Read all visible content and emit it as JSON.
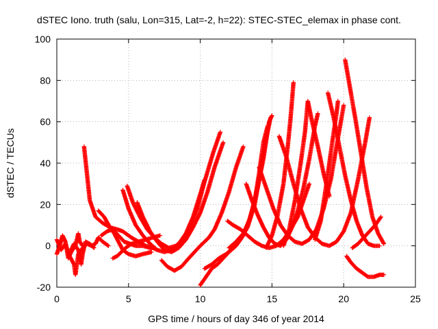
{
  "chart_data": {
    "type": "scatter",
    "title": "dSTEC Iono. truth (salu, Lon=315, Lat=-2, h=22): STEC-STEC_elemax in phase cont.",
    "xlabel": "GPS time / hours of day 346 of year 2014",
    "ylabel": "dSTEC  / TECUs",
    "xlim": [
      0,
      25
    ],
    "ylim": [
      -20,
      100
    ],
    "xticks": [
      0,
      5,
      10,
      15,
      20,
      25
    ],
    "yticks": [
      -20,
      0,
      20,
      40,
      60,
      80,
      100
    ],
    "xtick_labels": [
      "0",
      "5",
      "10",
      "15",
      "20",
      "25"
    ],
    "ytick_labels": [
      "-20",
      "0",
      "20",
      "40",
      "60",
      "80",
      "100"
    ],
    "grid": true,
    "legend": "none",
    "marker": "plus",
    "color": "#ff0000",
    "arcs": [
      {
        "points": [
          [
            0.0,
            3
          ],
          [
            0.3,
            -2
          ],
          [
            0.6,
            1
          ],
          [
            0.9,
            -5
          ],
          [
            1.2,
            -9
          ],
          [
            1.3,
            -14
          ],
          [
            1.5,
            -4
          ],
          [
            1.8,
            -1
          ],
          [
            2.1,
            1
          ],
          [
            2.4,
            0
          ],
          [
            2.7,
            1
          ],
          [
            2.9,
            4
          ],
          [
            3.2,
            2
          ],
          [
            3.6,
            0
          ]
        ]
      },
      {
        "points": [
          [
            0.0,
            -4
          ],
          [
            0.2,
            0
          ],
          [
            0.4,
            5
          ],
          [
            0.6,
            2
          ],
          [
            0.8,
            -6
          ],
          [
            1.0,
            -3
          ],
          [
            1.3,
            0
          ],
          [
            1.5,
            6
          ],
          [
            1.6,
            2
          ],
          [
            1.8,
            0
          ]
        ]
      },
      {
        "points": [
          [
            1.0,
            -2
          ],
          [
            1.2,
            1
          ],
          [
            1.5,
            -2
          ],
          [
            1.7,
            -9
          ],
          [
            1.8,
            -4
          ],
          [
            2.0,
            2
          ],
          [
            2.3,
            1
          ],
          [
            2.6,
            -1
          ]
        ]
      },
      {
        "points": [
          [
            1.9,
            48
          ],
          [
            2.1,
            35
          ],
          [
            2.3,
            22
          ],
          [
            2.7,
            14
          ],
          [
            3.2,
            11
          ],
          [
            3.7,
            9
          ],
          [
            4.2,
            8
          ],
          [
            4.6,
            7
          ],
          [
            5.2,
            4
          ],
          [
            5.7,
            2
          ],
          [
            6.2,
            0
          ],
          [
            6.7,
            -1
          ],
          [
            7.0,
            -2
          ]
        ]
      },
      {
        "points": [
          [
            2.9,
            17
          ],
          [
            3.3,
            14
          ],
          [
            3.7,
            9
          ],
          [
            4.0,
            6
          ],
          [
            4.3,
            2
          ],
          [
            4.6,
            -2
          ],
          [
            5.0,
            -4
          ],
          [
            5.5,
            -5
          ],
          [
            6.0,
            -4
          ],
          [
            6.6,
            -3
          ]
        ]
      },
      {
        "points": [
          [
            3.1,
            5
          ],
          [
            3.5,
            7
          ],
          [
            3.9,
            8
          ],
          [
            4.3,
            5
          ],
          [
            4.7,
            2
          ],
          [
            5.1,
            1
          ],
          [
            5.5,
            0
          ],
          [
            6.0,
            0
          ],
          [
            6.5,
            -1
          ],
          [
            6.8,
            -1
          ]
        ]
      },
      {
        "points": [
          [
            3.9,
            -6
          ],
          [
            4.2,
            -5
          ],
          [
            4.5,
            -3
          ],
          [
            4.8,
            -1
          ],
          [
            5.2,
            1
          ],
          [
            5.7,
            2
          ],
          [
            6.2,
            3
          ],
          [
            6.7,
            4
          ],
          [
            7.2,
            5
          ]
        ]
      },
      {
        "points": [
          [
            4.6,
            27
          ],
          [
            5.0,
            18
          ],
          [
            5.5,
            10
          ],
          [
            6.0,
            5
          ],
          [
            6.5,
            1
          ],
          [
            7.0,
            -2
          ],
          [
            7.5,
            -3
          ],
          [
            8.0,
            -2
          ],
          [
            8.5,
            1
          ],
          [
            9.0,
            6
          ],
          [
            9.5,
            14
          ],
          [
            10.0,
            25
          ],
          [
            10.3,
            32
          ]
        ]
      },
      {
        "points": [
          [
            4.9,
            29
          ],
          [
            5.3,
            21
          ],
          [
            5.8,
            14
          ],
          [
            6.3,
            8
          ],
          [
            6.8,
            4
          ],
          [
            7.3,
            1
          ],
          [
            7.8,
            -1
          ],
          [
            8.3,
            0
          ],
          [
            8.8,
            3
          ],
          [
            9.3,
            9
          ],
          [
            9.8,
            18
          ],
          [
            10.3,
            31
          ],
          [
            10.9,
            45
          ],
          [
            11.4,
            55
          ]
        ]
      },
      {
        "points": [
          [
            5.6,
            21
          ],
          [
            6.0,
            14
          ],
          [
            6.5,
            7
          ],
          [
            7.0,
            2
          ],
          [
            7.5,
            -2
          ],
          [
            8.0,
            -3
          ],
          [
            8.5,
            -1
          ],
          [
            9.0,
            3
          ],
          [
            9.5,
            9
          ],
          [
            10.0,
            16
          ],
          [
            10.5,
            26
          ],
          [
            11.0,
            38
          ],
          [
            11.6,
            50
          ]
        ]
      },
      {
        "points": [
          [
            7.3,
            -7
          ],
          [
            7.7,
            -10
          ],
          [
            8.2,
            -12
          ],
          [
            8.7,
            -10
          ],
          [
            9.2,
            -6
          ],
          [
            9.6,
            -3
          ],
          [
            10.0,
            0
          ],
          [
            10.6,
            4
          ],
          [
            11.0,
            8
          ],
          [
            11.5,
            16
          ],
          [
            12.0,
            26
          ],
          [
            12.5,
            38
          ],
          [
            13.0,
            48
          ]
        ]
      },
      {
        "points": [
          [
            10.0,
            -19
          ],
          [
            10.4,
            -15
          ],
          [
            10.8,
            -11
          ],
          [
            11.2,
            -9
          ],
          [
            11.6,
            -6
          ],
          [
            12.0,
            -3
          ],
          [
            12.5,
            0
          ],
          [
            13.0,
            5
          ],
          [
            13.5,
            14
          ],
          [
            14.0,
            28
          ],
          [
            14.4,
            42
          ],
          [
            14.8,
            60
          ],
          [
            15.0,
            63
          ]
        ]
      },
      {
        "points": [
          [
            10.3,
            -11
          ],
          [
            10.8,
            -9
          ],
          [
            11.3,
            -6
          ],
          [
            11.8,
            -4
          ],
          [
            12.3,
            -1
          ],
          [
            12.8,
            3
          ],
          [
            13.3,
            9
          ],
          [
            13.8,
            20
          ],
          [
            14.2,
            36
          ],
          [
            14.6,
            52
          ],
          [
            14.9,
            62
          ]
        ]
      },
      {
        "points": [
          [
            12.0,
            -1
          ],
          [
            12.5,
            2
          ],
          [
            13.0,
            6
          ],
          [
            13.4,
            12
          ],
          [
            13.8,
            22
          ],
          [
            14.1,
            35
          ],
          [
            14.4,
            50
          ],
          [
            14.7,
            58
          ]
        ]
      },
      {
        "points": [
          [
            11.9,
            12
          ],
          [
            12.3,
            10
          ],
          [
            12.8,
            8
          ],
          [
            13.3,
            5
          ],
          [
            13.8,
            2
          ],
          [
            14.3,
            0
          ],
          [
            14.8,
            -1
          ],
          [
            15.3,
            0
          ],
          [
            15.8,
            3
          ],
          [
            16.3,
            8
          ],
          [
            16.8,
            14
          ],
          [
            17.3,
            24
          ],
          [
            17.6,
            30
          ]
        ]
      },
      {
        "points": [
          [
            13.2,
            30
          ],
          [
            13.6,
            22
          ],
          [
            14.0,
            15
          ],
          [
            14.4,
            9
          ],
          [
            14.8,
            4
          ],
          [
            15.2,
            1
          ],
          [
            15.6,
            0
          ],
          [
            16.0,
            3
          ],
          [
            16.4,
            9
          ],
          [
            16.8,
            17
          ],
          [
            17.2,
            28
          ],
          [
            17.6,
            42
          ],
          [
            18.0,
            58
          ],
          [
            18.2,
            64
          ]
        ]
      },
      {
        "points": [
          [
            14.1,
            38
          ],
          [
            14.6,
            28
          ],
          [
            15.1,
            18
          ],
          [
            15.6,
            10
          ],
          [
            16.1,
            5
          ],
          [
            16.6,
            2
          ],
          [
            17.1,
            1
          ],
          [
            17.6,
            3
          ],
          [
            18.1,
            8
          ],
          [
            18.6,
            18
          ],
          [
            19.1,
            32
          ],
          [
            19.6,
            52
          ],
          [
            20.0,
            68
          ]
        ]
      },
      {
        "points": [
          [
            15.5,
            53
          ],
          [
            16.0,
            43
          ],
          [
            16.5,
            30
          ],
          [
            17.0,
            18
          ],
          [
            17.5,
            9
          ],
          [
            18.0,
            4
          ],
          [
            18.5,
            1
          ],
          [
            19.0,
            0
          ],
          [
            19.5,
            2
          ],
          [
            20.0,
            7
          ],
          [
            20.5,
            16
          ],
          [
            21.0,
            32
          ],
          [
            21.5,
            50
          ],
          [
            21.8,
            62
          ]
        ]
      },
      {
        "points": [
          [
            14.6,
            -1
          ],
          [
            15.0,
            5
          ],
          [
            15.4,
            15
          ],
          [
            15.8,
            30
          ],
          [
            16.1,
            48
          ],
          [
            16.3,
            62
          ],
          [
            16.5,
            79
          ]
        ]
      },
      {
        "points": [
          [
            15.8,
            0
          ],
          [
            16.2,
            8
          ],
          [
            16.6,
            22
          ],
          [
            17.0,
            40
          ],
          [
            17.3,
            55
          ],
          [
            17.5,
            70
          ],
          [
            17.8,
            60
          ],
          [
            18.2,
            48
          ],
          [
            18.6,
            35
          ],
          [
            19.0,
            24
          ]
        ]
      },
      {
        "points": [
          [
            18.0,
            3
          ],
          [
            18.4,
            12
          ],
          [
            18.8,
            30
          ],
          [
            19.2,
            50
          ],
          [
            19.5,
            64
          ],
          [
            19.6,
            70
          ]
        ]
      },
      {
        "points": [
          [
            18.9,
            74
          ],
          [
            19.3,
            62
          ],
          [
            19.7,
            48
          ],
          [
            20.1,
            34
          ],
          [
            20.5,
            22
          ],
          [
            20.9,
            12
          ],
          [
            21.3,
            5
          ],
          [
            21.7,
            1
          ],
          [
            22.1,
            0
          ],
          [
            22.5,
            0
          ]
        ]
      },
      {
        "points": [
          [
            20.1,
            90
          ],
          [
            20.4,
            78
          ],
          [
            20.8,
            62
          ],
          [
            21.2,
            45
          ],
          [
            21.6,
            28
          ],
          [
            22.0,
            14
          ],
          [
            22.4,
            6
          ],
          [
            22.8,
            1
          ]
        ]
      },
      {
        "points": [
          [
            20.2,
            -5
          ],
          [
            20.5,
            -8
          ],
          [
            20.9,
            -11
          ],
          [
            21.3,
            -13
          ],
          [
            21.7,
            -15
          ],
          [
            22.1,
            -15
          ],
          [
            22.5,
            -14
          ],
          [
            22.8,
            -14
          ]
        ]
      },
      {
        "points": [
          [
            20.6,
            -1
          ],
          [
            21.0,
            1
          ],
          [
            21.4,
            4
          ],
          [
            21.8,
            7
          ],
          [
            22.2,
            10
          ],
          [
            22.6,
            14
          ]
        ]
      }
    ]
  }
}
